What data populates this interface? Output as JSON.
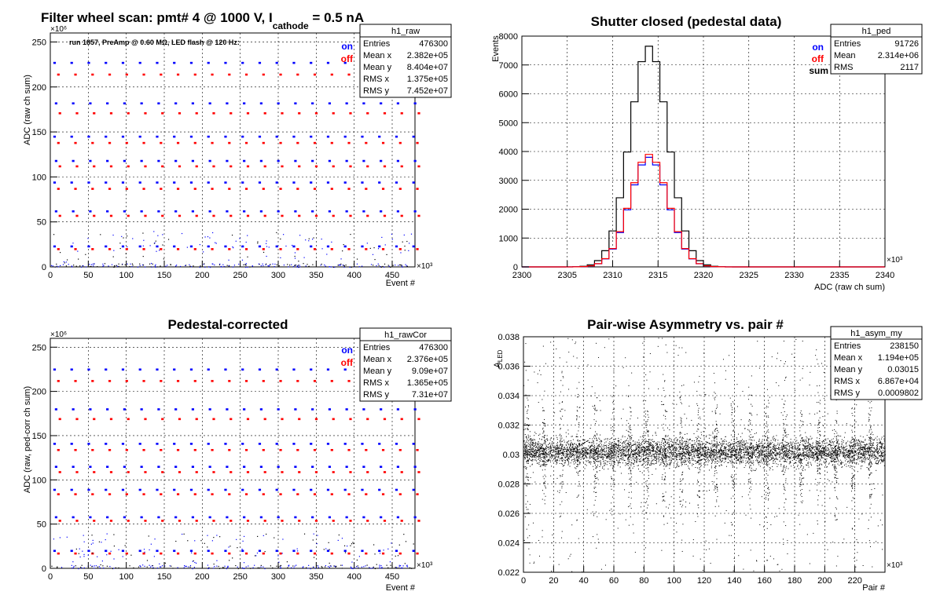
{
  "colors": {
    "on": "#0000ff",
    "off": "#ff0000",
    "sum": "#000000"
  },
  "chart_data": [
    {
      "id": "raw",
      "type": "scatter",
      "title_parts": [
        "Filter wheel scan: pmt#   4 @  1000 V, I",
        "cathode",
        " = 0.5 nA"
      ],
      "subtitle": "run 1857, PreAmp @ 0.60 MΩ, LED flash @  120 Hz:",
      "xlabel": "Event #",
      "ylabel": "ADC (raw ch sum)",
      "x_multiplier": "×10³",
      "y_multiplier": "×10⁶",
      "xlim": [
        0,
        480
      ],
      "ylim": [
        0,
        260
      ],
      "xticks": [
        "0",
        "50",
        "100",
        "150",
        "200",
        "250",
        "300",
        "350",
        "400",
        "450"
      ],
      "yticks": [
        "0",
        "50",
        "100",
        "150",
        "200",
        "250"
      ],
      "legend": [
        "on",
        "off"
      ],
      "stats": {
        "name": "h1_raw",
        "rows": [
          [
            "Entries",
            "476300"
          ],
          [
            "Mean x",
            "2.382e+05"
          ],
          [
            "Mean y",
            "8.404e+07"
          ],
          [
            "RMS x",
            "1.375e+05"
          ],
          [
            "RMS y",
            "7.452e+07"
          ]
        ]
      },
      "on_levels": [
        227,
        182,
        145,
        118,
        94,
        62,
        23
      ],
      "off_levels": [
        214,
        171,
        138,
        112,
        87,
        57,
        20
      ],
      "step_period": 22.5
    },
    {
      "id": "ped",
      "type": "line",
      "title": "Shutter closed (pedestal data)",
      "xlabel": "ADC (raw ch sum)",
      "ylabel": "Events",
      "x_multiplier": "×10³",
      "xlim": [
        2300,
        2340
      ],
      "ylim": [
        0,
        8000
      ],
      "xticks": [
        "2300",
        "2305",
        "2310",
        "2315",
        "2320",
        "2325",
        "2330",
        "2335",
        "2340"
      ],
      "yticks": [
        "0",
        "1000",
        "2000",
        "3000",
        "4000",
        "5000",
        "6000",
        "7000",
        "8000"
      ],
      "legend": [
        "on",
        "off",
        "sum"
      ],
      "stats": {
        "name": "h1_ped",
        "rows": [
          [
            "Entries",
            "91726"
          ],
          [
            "Mean",
            "2.314e+06"
          ],
          [
            "RMS",
            "2117"
          ]
        ]
      },
      "peak_x": 2314,
      "series": [
        {
          "name": "sum",
          "peak": 7650,
          "sigma": 2.1
        },
        {
          "name": "on",
          "peak": 3800,
          "sigma": 2.1
        },
        {
          "name": "off",
          "peak": 3900,
          "sigma": 2.1
        }
      ]
    },
    {
      "id": "cor",
      "type": "scatter",
      "title": "Pedestal-corrected",
      "xlabel": "Event #",
      "ylabel": "ADC (raw, ped-corr ch sum)",
      "x_multiplier": "×10³",
      "y_multiplier": "×10⁶",
      "xlim": [
        0,
        480
      ],
      "ylim": [
        0,
        260
      ],
      "xticks": [
        "0",
        "50",
        "100",
        "150",
        "200",
        "250",
        "300",
        "350",
        "400",
        "450"
      ],
      "yticks": [
        "0",
        "50",
        "100",
        "150",
        "200",
        "250"
      ],
      "legend": [
        "on",
        "off"
      ],
      "stats": {
        "name": "h1_rawCor",
        "rows": [
          [
            "Entries",
            "476300"
          ],
          [
            "Mean x",
            "2.376e+05"
          ],
          [
            "Mean y",
            "9.09e+07"
          ],
          [
            "RMS x",
            "1.365e+05"
          ],
          [
            "RMS y",
            "7.31e+07"
          ]
        ]
      },
      "on_levels": [
        225,
        180,
        141,
        115,
        89,
        58,
        20
      ],
      "off_levels": [
        212,
        169,
        134,
        109,
        84,
        54,
        17
      ],
      "step_period": 22.5
    },
    {
      "id": "asym",
      "type": "scatter",
      "title": "Pair-wise Asymmetry vs. pair #",
      "xlabel": "Pair #",
      "ylabel": "A",
      "ylabel_sub": "LED",
      "x_multiplier": "×10³",
      "xlim": [
        0,
        240
      ],
      "ylim": [
        0.022,
        0.038
      ],
      "xticks": [
        "0",
        "20",
        "40",
        "60",
        "80",
        "100",
        "120",
        "140",
        "160",
        "180",
        "200",
        "220"
      ],
      "yticks": [
        "0.022",
        "0.024",
        "0.026",
        "0.028",
        "0.03",
        "0.032",
        "0.034",
        "0.036",
        "0.038"
      ],
      "stats": {
        "name": "h1_asym_my",
        "rows": [
          [
            "Entries",
            "238150"
          ],
          [
            "Mean x",
            "1.194e+05"
          ],
          [
            "Mean y",
            "0.03015"
          ],
          [
            "RMS x",
            "6.867e+04"
          ],
          [
            "RMS y",
            "0.0009802"
          ]
        ]
      },
      "center": 0.0302,
      "band_halfwidth": 0.0005
    }
  ]
}
